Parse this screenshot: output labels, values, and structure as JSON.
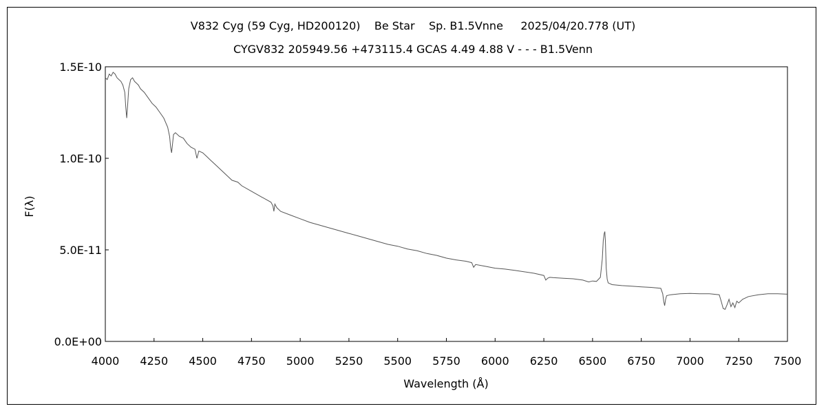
{
  "chart_data": {
    "type": "line",
    "title": "V832 Cyg (59 Cyg, HD200120)    Be Star    Sp. B1.5Vnne     2025/04/20.778 (UT)",
    "subtitle": "CYGV832 205949.56 +473115.4 GCAS 4.49 4.88 V - - - B1.5Venn",
    "xlabel": "Wavelength (Å)",
    "ylabel": "F(λ)",
    "xlim": [
      4000,
      7500
    ],
    "ylim": [
      0,
      1.5e-10
    ],
    "grid": false,
    "x_ticks": [
      "4000",
      "4250",
      "4500",
      "4750",
      "5000",
      "5250",
      "5500",
      "5750",
      "6000",
      "6250",
      "6500",
      "6750",
      "7000",
      "7250",
      "7500"
    ],
    "y_ticks": [
      "0.0E+00",
      "5.0E-11",
      "1.0E-10",
      "1.5E-10"
    ],
    "line_color": "#555555",
    "series": [
      {
        "x": [
          4000,
          4010,
          4020,
          4030,
          4040,
          4050,
          4060,
          4070,
          4080,
          4090,
          4100,
          4105,
          4110,
          4115,
          4120,
          4130,
          4140,
          4150,
          4160,
          4170,
          4180,
          4200,
          4220,
          4240,
          4260,
          4280,
          4300,
          4320,
          4330,
          4335,
          4340,
          4345,
          4350,
          4360,
          4380,
          4400,
          4420,
          4440,
          4460,
          4470,
          4480,
          4500,
          4520,
          4540,
          4560,
          4580,
          4600,
          4620,
          4650,
          4680,
          4700,
          4750,
          4800,
          4850,
          4860,
          4865,
          4870,
          4880,
          4900,
          4950,
          5000,
          5050,
          5100,
          5150,
          5200,
          5250,
          5300,
          5350,
          5400,
          5450,
          5500,
          5550,
          5600,
          5650,
          5700,
          5750,
          5800,
          5850,
          5880,
          5890,
          5900,
          5950,
          6000,
          6050,
          6100,
          6150,
          6200,
          6250,
          6260,
          6270,
          6280,
          6300,
          6350,
          6400,
          6450,
          6480,
          6500,
          6520,
          6540,
          6550,
          6555,
          6560,
          6563,
          6566,
          6570,
          6575,
          6580,
          6590,
          6600,
          6650,
          6700,
          6750,
          6800,
          6850,
          6860,
          6865,
          6870,
          6875,
          6880,
          6900,
          6950,
          7000,
          7050,
          7100,
          7150,
          7160,
          7170,
          7180,
          7190,
          7200,
          7210,
          7220,
          7230,
          7240,
          7250,
          7270,
          7300,
          7350,
          7400,
          7450,
          7500
        ],
        "y": [
          1.44e-10,
          1.43e-10,
          1.46e-10,
          1.45e-10,
          1.47e-10,
          1.46e-10,
          1.44e-10,
          1.43e-10,
          1.42e-10,
          1.4e-10,
          1.36e-10,
          1.28e-10,
          1.22e-10,
          1.3e-10,
          1.38e-10,
          1.43e-10,
          1.44e-10,
          1.42e-10,
          1.41e-10,
          1.4e-10,
          1.38e-10,
          1.36e-10,
          1.33e-10,
          1.3e-10,
          1.28e-10,
          1.25e-10,
          1.22e-10,
          1.17e-10,
          1.12e-10,
          1.06e-10,
          1.03e-10,
          1.08e-10,
          1.13e-10,
          1.14e-10,
          1.12e-10,
          1.11e-10,
          1.08e-10,
          1.06e-10,
          1.05e-10,
          1e-10,
          1.04e-10,
          1.03e-10,
          1.01e-10,
          9.9e-11,
          9.7e-11,
          9.5e-11,
          9.3e-11,
          9.1e-11,
          8.8e-11,
          8.7e-11,
          8.5e-11,
          8.2e-11,
          7.9e-11,
          7.6e-11,
          7.4e-11,
          7.1e-11,
          7.5e-11,
          7.3e-11,
          7.1e-11,
          6.9e-11,
          6.7e-11,
          6.5e-11,
          6.35e-11,
          6.2e-11,
          6.05e-11,
          5.9e-11,
          5.75e-11,
          5.6e-11,
          5.45e-11,
          5.3e-11,
          5.2e-11,
          5.05e-11,
          4.95e-11,
          4.8e-11,
          4.7e-11,
          4.55e-11,
          4.45e-11,
          4.38e-11,
          4.3e-11,
          4.05e-11,
          4.2e-11,
          4.1e-11,
          4e-11,
          3.95e-11,
          3.88e-11,
          3.8e-11,
          3.72e-11,
          3.6e-11,
          3.35e-11,
          3.45e-11,
          3.5e-11,
          3.48e-11,
          3.45e-11,
          3.42e-11,
          3.35e-11,
          3.25e-11,
          3.3e-11,
          3.28e-11,
          3.5e-11,
          4.5e-11,
          5.5e-11,
          5.9e-11,
          6e-11,
          5.5e-11,
          4e-11,
          3.4e-11,
          3.2e-11,
          3.15e-11,
          3.1e-11,
          3.05e-11,
          3.02e-11,
          2.98e-11,
          2.95e-11,
          2.9e-11,
          2.6e-11,
          2.2e-11,
          1.95e-11,
          2.3e-11,
          2.5e-11,
          2.55e-11,
          2.6e-11,
          2.62e-11,
          2.6e-11,
          2.6e-11,
          2.55e-11,
          2.2e-11,
          1.8e-11,
          1.75e-11,
          2e-11,
          2.3e-11,
          1.9e-11,
          2.1e-11,
          1.85e-11,
          2.2e-11,
          2.1e-11,
          2.3e-11,
          2.45e-11,
          2.55e-11,
          2.6e-11,
          2.6e-11,
          2.58e-11
        ]
      }
    ]
  }
}
